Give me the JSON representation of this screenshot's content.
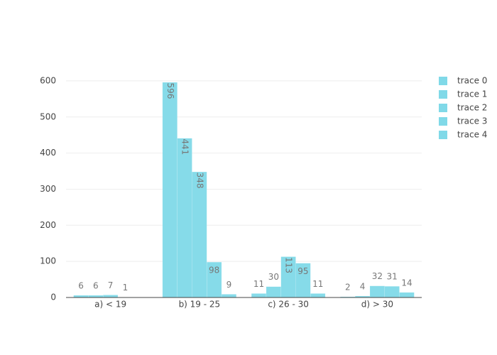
{
  "chart_data": {
    "type": "bar",
    "categories": [
      "a) < 19",
      "b) 19 - 25",
      "c) 26 - 30",
      "d) > 30"
    ],
    "series": [
      {
        "name": "trace 0",
        "color": "#80d9e8",
        "values": [
          6,
          596,
          11,
          2
        ]
      },
      {
        "name": "trace 1",
        "color": "#80d9e8",
        "values": [
          6,
          441,
          30,
          4
        ]
      },
      {
        "name": "trace 2",
        "color": "#80d9e8",
        "values": [
          7,
          348,
          113,
          32
        ]
      },
      {
        "name": "trace 3",
        "color": "#80d9e8",
        "values": [
          1,
          98,
          95,
          31
        ]
      },
      {
        "name": "trace 4",
        "color": "#80d9e8",
        "values": [
          null,
          9,
          11,
          14
        ]
      }
    ],
    "ylim": [
      0,
      627.4
    ],
    "yticks": [
      0,
      100,
      200,
      300,
      400,
      500,
      600
    ],
    "grid": true
  }
}
